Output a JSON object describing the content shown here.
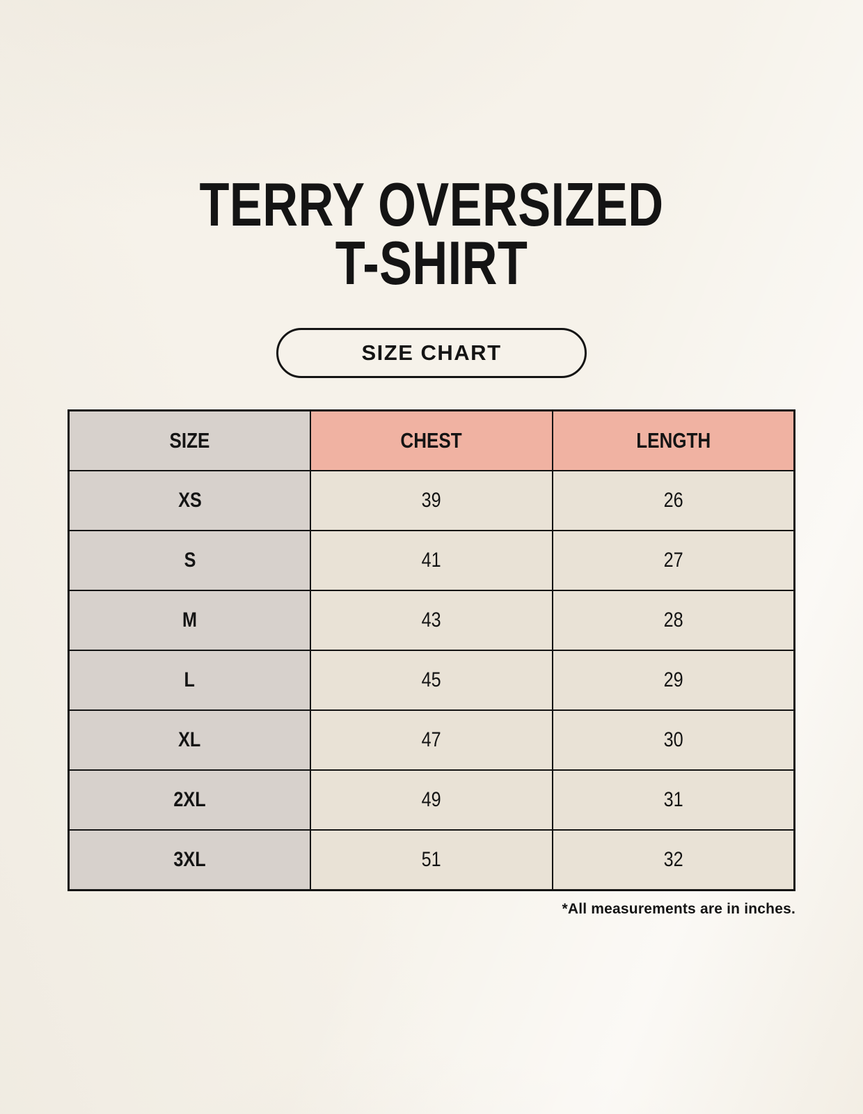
{
  "page": {
    "title_line1": "TERRY OVERSIZED",
    "title_line2": "T-SHIRT",
    "size_chart_button_label": "SIZE CHART",
    "footnote": "*All measurements are in inches."
  },
  "colors": {
    "background": "#f6f2ea",
    "header_accent_pink": "#f0b2a2",
    "size_column_gray": "#d7d1cc",
    "data_cell_beige": "#e9e2d6",
    "table_border": "#141414",
    "text": "#141414"
  },
  "chart_data": {
    "type": "table",
    "title": "TERRY OVERSIZED T-SHIRT",
    "columns": [
      "SIZE",
      "CHEST",
      "LENGTH"
    ],
    "rows": [
      [
        "XS",
        "39",
        "26"
      ],
      [
        "S",
        "41",
        "27"
      ],
      [
        "M",
        "43",
        "28"
      ],
      [
        "L",
        "45",
        "29"
      ],
      [
        "XL",
        "47",
        "30"
      ],
      [
        "2XL",
        "49",
        "31"
      ],
      [
        "3XL",
        "51",
        "32"
      ]
    ],
    "units_note": "*All measurements are in inches."
  }
}
